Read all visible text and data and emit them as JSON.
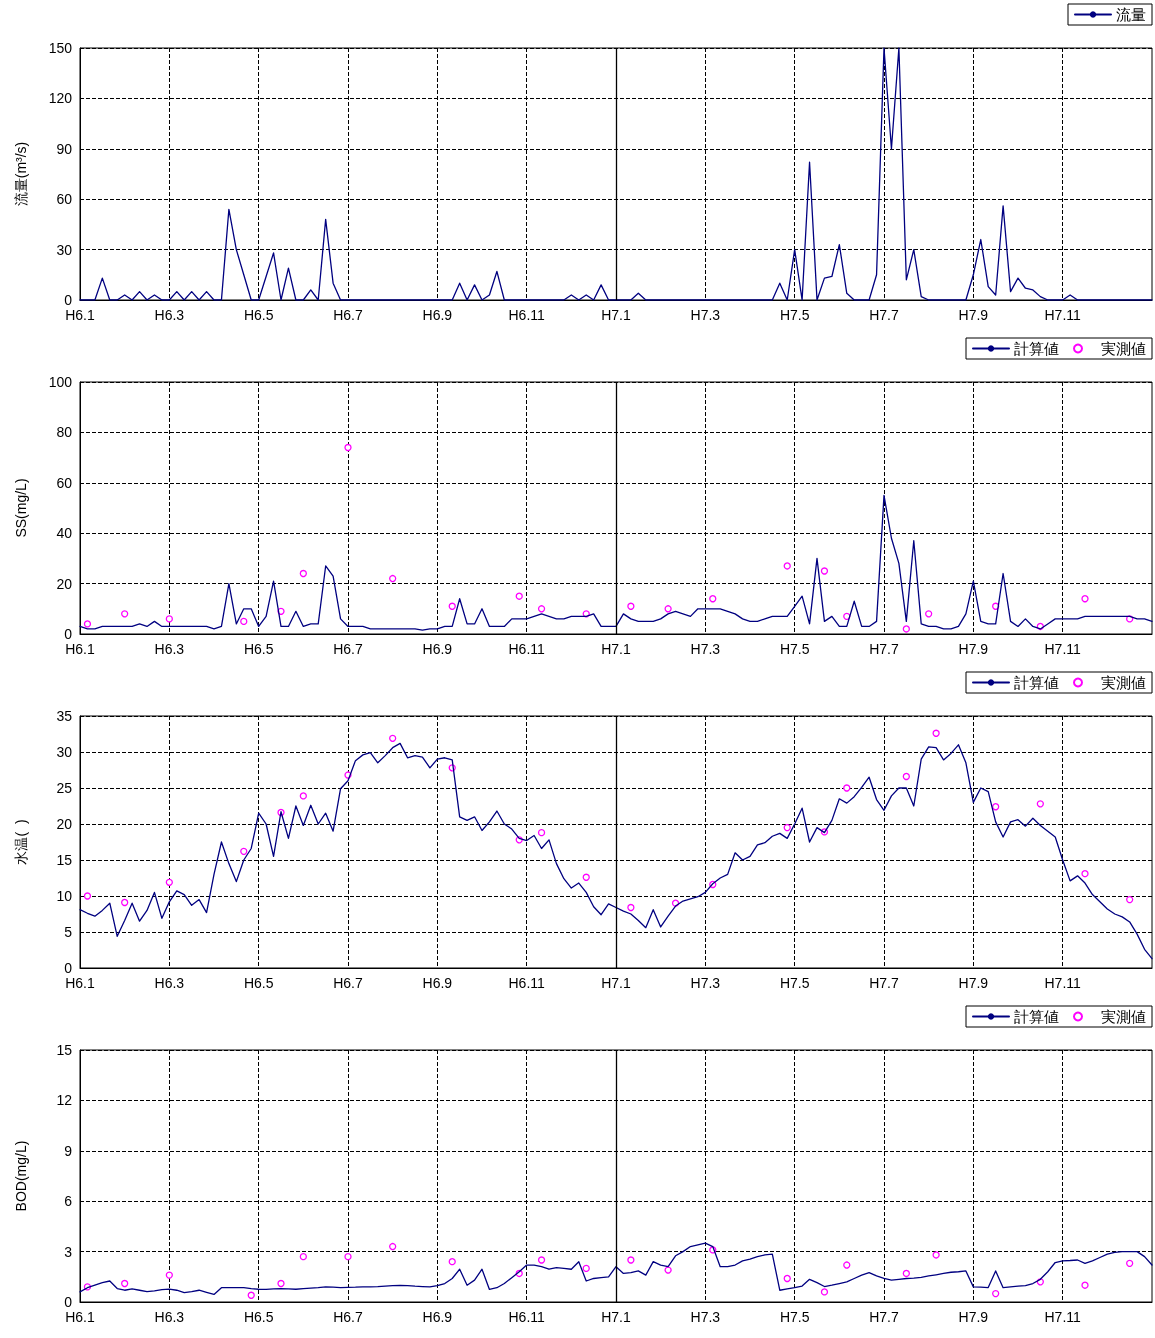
{
  "chart_data": [
    {
      "type": "line",
      "ylabel": "流量(m³/s)",
      "ylim": [
        0,
        150
      ],
      "yticks": [
        0,
        30,
        60,
        90,
        120,
        150
      ],
      "categories": [
        "H6.1",
        null,
        null,
        null,
        null,
        null,
        null,
        null,
        null,
        null,
        null,
        null,
        "H6.3",
        null,
        null,
        null,
        null,
        null,
        null,
        null,
        null,
        null,
        null,
        null,
        "H6.5",
        null,
        null,
        null,
        null,
        null,
        null,
        null,
        null,
        null,
        null,
        null,
        "H6.7",
        null,
        null,
        null,
        null,
        null,
        null,
        null,
        null,
        null,
        null,
        null,
        "H6.9",
        null,
        null,
        null,
        null,
        null,
        null,
        null,
        null,
        null,
        null,
        null,
        "H6.11",
        null,
        null,
        null,
        null,
        null,
        null,
        null,
        null,
        null,
        null,
        null,
        "H7.1",
        null,
        null,
        null,
        null,
        null,
        null,
        null,
        null,
        null,
        null,
        null,
        "H7.3",
        null,
        null,
        null,
        null,
        null,
        null,
        null,
        null,
        null,
        null,
        null,
        "H7.5",
        null,
        null,
        null,
        null,
        null,
        null,
        null,
        null,
        null,
        null,
        null,
        "H7.7",
        null,
        null,
        null,
        null,
        null,
        null,
        null,
        null,
        null,
        null,
        null,
        "H7.9",
        null,
        null,
        null,
        null,
        null,
        null,
        null,
        null,
        null,
        null,
        null,
        "H7.11",
        null,
        null,
        null,
        null,
        null,
        null,
        null,
        null,
        null,
        null,
        null,
        null
      ],
      "grid": true,
      "legend": "top right",
      "line_style": "solid",
      "ref_lines": [
        {
          "axis": "x",
          "value": "H7.1",
          "label": null,
          "color": "#000000",
          "line_style": "solid"
        }
      ],
      "series": [
        {
          "name": "流量",
          "color": "#000080",
          "marker": "none",
          "values": [
            0,
            0,
            0,
            13,
            0,
            0,
            3,
            0,
            5,
            0,
            3,
            0,
            0,
            5,
            0,
            5,
            0,
            5,
            0,
            0,
            54,
            30,
            15,
            0,
            0,
            14,
            28,
            0,
            19,
            0,
            0,
            6,
            0,
            48,
            10,
            0,
            0,
            0,
            0,
            0,
            0,
            0,
            0,
            0,
            0,
            0,
            0,
            0,
            0,
            0,
            0,
            10,
            0,
            9,
            0,
            3,
            17,
            0,
            0,
            0,
            0,
            0,
            0,
            0,
            0,
            0,
            3,
            0,
            3,
            0,
            9,
            0,
            0,
            0,
            0,
            4,
            0,
            0,
            0,
            0,
            0,
            0,
            0,
            0,
            0,
            0,
            0,
            0,
            0,
            0,
            0,
            0,
            0,
            0,
            10,
            0,
            30,
            0,
            82,
            0,
            13,
            14,
            33,
            4,
            0,
            0,
            0,
            15,
            150,
            90,
            150,
            12,
            30,
            2,
            0,
            0,
            0,
            0,
            0,
            0,
            15,
            36,
            8,
            3,
            56,
            5,
            13,
            7,
            6,
            2,
            0,
            0,
            0,
            3,
            0,
            0,
            0,
            0,
            0,
            0,
            0,
            0,
            0,
            0,
            0
          ]
        }
      ]
    },
    {
      "type": "line",
      "ylabel": "SS(mg/L)",
      "ylim": [
        0,
        100
      ],
      "yticks": [
        0,
        20,
        40,
        60,
        80,
        100
      ],
      "categories": [
        "H6.1",
        null,
        null,
        null,
        null,
        null,
        null,
        null,
        null,
        null,
        null,
        null,
        "H6.3",
        null,
        null,
        null,
        null,
        null,
        null,
        null,
        null,
        null,
        null,
        null,
        "H6.5",
        null,
        null,
        null,
        null,
        null,
        null,
        null,
        null,
        null,
        null,
        null,
        "H6.7",
        null,
        null,
        null,
        null,
        null,
        null,
        null,
        null,
        null,
        null,
        null,
        "H6.9",
        null,
        null,
        null,
        null,
        null,
        null,
        null,
        null,
        null,
        null,
        null,
        "H6.11",
        null,
        null,
        null,
        null,
        null,
        null,
        null,
        null,
        null,
        null,
        null,
        "H7.1",
        null,
        null,
        null,
        null,
        null,
        null,
        null,
        null,
        null,
        null,
        null,
        "H7.3",
        null,
        null,
        null,
        null,
        null,
        null,
        null,
        null,
        null,
        null,
        null,
        "H7.5",
        null,
        null,
        null,
        null,
        null,
        null,
        null,
        null,
        null,
        null,
        null,
        "H7.7",
        null,
        null,
        null,
        null,
        null,
        null,
        null,
        null,
        null,
        null,
        null,
        "H7.9",
        null,
        null,
        null,
        null,
        null,
        null,
        null,
        null,
        null,
        null,
        null,
        "H7.11",
        null,
        null,
        null,
        null,
        null,
        null,
        null,
        null,
        null,
        null,
        null,
        null
      ],
      "grid": true,
      "legend": "top right",
      "line_style": "solid",
      "ref_lines": [
        {
          "axis": "x",
          "value": "H7.1",
          "label": null,
          "color": "#000000",
          "line_style": "solid"
        }
      ],
      "series": [
        {
          "name": "計算値",
          "color": "#000080",
          "marker": "none",
          "values": [
            3,
            2,
            2,
            3,
            3,
            3,
            3,
            3,
            4,
            3,
            5,
            3,
            3,
            3,
            3,
            3,
            3,
            3,
            2,
            3,
            20,
            4,
            10,
            10,
            3,
            7,
            21,
            3,
            3,
            9,
            3,
            4,
            4,
            27,
            23,
            6,
            3,
            3,
            3,
            2,
            2,
            2,
            2,
            2,
            2,
            2,
            1.5,
            2,
            2,
            3,
            3,
            14,
            4,
            4,
            10,
            3,
            3,
            3,
            6,
            6,
            6,
            7,
            8,
            7,
            6,
            6,
            7,
            7,
            7,
            8,
            3,
            3,
            3,
            8,
            6,
            5,
            5,
            5,
            6,
            8,
            9,
            8,
            7,
            10,
            10,
            10,
            10,
            9,
            8,
            6,
            5,
            5,
            6,
            7,
            7,
            7,
            11,
            15,
            4,
            30,
            5,
            7,
            3,
            3,
            13,
            3,
            3,
            5,
            55,
            38,
            28,
            5,
            37,
            4,
            3,
            3,
            2,
            2,
            3,
            8,
            21,
            5,
            4,
            4,
            24,
            5,
            3,
            6,
            3,
            2,
            4,
            6,
            6,
            6,
            6,
            7,
            7,
            7,
            7,
            7,
            7,
            7,
            6,
            6,
            5
          ]
        },
        {
          "name": "実測値",
          "type": "scatter",
          "color": "#ff00ff",
          "marker": "circle",
          "values": [
            null,
            4,
            null,
            null,
            null,
            null,
            8,
            null,
            null,
            null,
            null,
            null,
            6,
            null,
            null,
            null,
            null,
            null,
            null,
            null,
            null,
            null,
            5,
            null,
            null,
            null,
            null,
            9,
            null,
            null,
            24,
            null,
            null,
            null,
            null,
            null,
            74,
            null,
            null,
            null,
            null,
            null,
            22,
            null,
            null,
            null,
            null,
            null,
            null,
            null,
            11,
            null,
            null,
            null,
            null,
            null,
            null,
            null,
            null,
            15,
            null,
            null,
            10,
            null,
            null,
            null,
            null,
            null,
            8,
            null,
            null,
            null,
            null,
            null,
            11,
            null,
            null,
            null,
            null,
            10,
            null,
            null,
            null,
            null,
            null,
            14,
            null,
            null,
            null,
            null,
            null,
            null,
            null,
            null,
            null,
            27,
            null,
            null,
            null,
            null,
            25,
            null,
            null,
            7,
            null,
            null,
            null,
            null,
            null,
            null,
            null,
            2,
            null,
            null,
            8,
            null,
            null,
            null,
            null,
            null,
            null,
            null,
            null,
            11,
            null,
            null,
            null,
            null,
            null,
            3,
            null,
            null,
            null,
            null,
            null,
            14,
            null,
            null,
            null,
            null,
            null,
            6,
            null,
            null,
            null
          ]
        }
      ]
    },
    {
      "type": "line",
      "ylabel": "水温(  )",
      "ylim": [
        0,
        35
      ],
      "yticks": [
        0,
        5,
        10,
        15,
        20,
        25,
        30,
        35
      ],
      "categories": [
        "H6.1",
        null,
        null,
        null,
        null,
        null,
        null,
        null,
        null,
        null,
        null,
        null,
        "H6.3",
        null,
        null,
        null,
        null,
        null,
        null,
        null,
        null,
        null,
        null,
        null,
        "H6.5",
        null,
        null,
        null,
        null,
        null,
        null,
        null,
        null,
        null,
        null,
        null,
        "H6.7",
        null,
        null,
        null,
        null,
        null,
        null,
        null,
        null,
        null,
        null,
        null,
        "H6.9",
        null,
        null,
        null,
        null,
        null,
        null,
        null,
        null,
        null,
        null,
        null,
        "H6.11",
        null,
        null,
        null,
        null,
        null,
        null,
        null,
        null,
        null,
        null,
        null,
        "H7.1",
        null,
        null,
        null,
        null,
        null,
        null,
        null,
        null,
        null,
        null,
        null,
        "H7.3",
        null,
        null,
        null,
        null,
        null,
        null,
        null,
        null,
        null,
        null,
        null,
        "H7.5",
        null,
        null,
        null,
        null,
        null,
        null,
        null,
        null,
        null,
        null,
        null,
        "H7.7",
        null,
        null,
        null,
        null,
        null,
        null,
        null,
        null,
        null,
        null,
        null,
        "H7.9",
        null,
        null,
        null,
        null,
        null,
        null,
        null,
        null,
        null,
        null,
        null,
        "H7.11",
        null,
        null,
        null,
        null,
        null,
        null,
        null,
        null,
        null,
        null,
        null,
        null
      ],
      "grid": true,
      "legend": "top right",
      "line_style": "solid",
      "ref_lines": [
        {
          "axis": "x",
          "value": "H7.1",
          "label": null,
          "color": "#000000",
          "line_style": "solid"
        }
      ],
      "series": [
        {
          "name": "計算値",
          "color": "#000080",
          "marker": "none",
          "values": [
            8.1,
            7.6,
            7.2,
            8.0,
            9,
            4.4,
            6.6,
            9,
            6.5,
            8,
            10.5,
            6.9,
            9.2,
            10.7,
            10.2,
            8.7,
            9.5,
            7.7,
            13,
            17.5,
            14.5,
            12,
            15,
            16.6,
            21.5,
            20,
            15.5,
            21.7,
            18,
            22.5,
            19.8,
            22.6,
            20,
            21.5,
            19,
            24.9,
            26,
            28.8,
            29.6,
            29.9,
            28.5,
            29.5,
            30.6,
            31.2,
            29.2,
            29.5,
            29.3,
            27.8,
            29,
            29.2,
            28.9,
            21,
            20.5,
            21,
            19.1,
            20.3,
            21.8,
            20,
            19.3,
            18,
            17.7,
            18.4,
            16.6,
            17.8,
            14.5,
            12.4,
            11.1,
            11.8,
            10.5,
            8.5,
            7.4,
            8.9,
            8.4,
            7.9,
            7.5,
            6.6,
            5.6,
            8.1,
            5.7,
            7.2,
            8.6,
            9.3,
            9.6,
            9.9,
            10.5,
            11.7,
            12.5,
            13,
            16,
            15,
            15.5,
            17.1,
            17.4,
            18.3,
            18.7,
            18,
            20,
            22.2,
            17.5,
            19.5,
            18.8,
            20.5,
            23.5,
            22.9,
            23.8,
            25.1,
            26.5,
            23.4,
            21.9,
            23.9,
            25,
            25,
            22.5,
            29,
            30.7,
            30.6,
            28.9,
            29.8,
            31,
            28.5,
            23,
            25,
            24.5,
            20.3,
            18.2,
            20.3,
            20.6,
            19.7,
            20.8,
            19.8,
            19,
            18.2,
            15,
            12.1,
            12.8,
            11.8,
            10.2,
            9.2,
            8.2,
            7.5,
            7.1,
            6.4,
            4.7,
            2.6,
            1.3
          ]
        },
        {
          "name": "実測値",
          "type": "scatter",
          "color": "#ff00ff",
          "marker": "circle",
          "values": [
            null,
            10,
            null,
            null,
            null,
            null,
            9.1,
            null,
            null,
            null,
            null,
            null,
            11.9,
            null,
            null,
            null,
            null,
            null,
            null,
            null,
            null,
            null,
            16.2,
            null,
            null,
            null,
            null,
            21.6,
            null,
            null,
            23.9,
            null,
            null,
            null,
            null,
            null,
            26.8,
            null,
            null,
            null,
            null,
            null,
            31.9,
            null,
            null,
            null,
            null,
            null,
            null,
            null,
            27.8,
            null,
            null,
            null,
            null,
            null,
            null,
            null,
            null,
            17.8,
            null,
            null,
            18.8,
            null,
            null,
            null,
            null,
            null,
            12.6,
            null,
            null,
            null,
            null,
            null,
            8.4,
            null,
            null,
            null,
            null,
            null,
            9.0,
            null,
            null,
            null,
            null,
            11.6,
            null,
            null,
            null,
            null,
            null,
            null,
            null,
            null,
            null,
            19.5,
            null,
            null,
            null,
            null,
            18.9,
            null,
            null,
            25,
            null,
            null,
            null,
            null,
            null,
            null,
            null,
            26.6,
            null,
            null,
            null,
            32.6,
            null,
            null,
            null,
            null,
            null,
            null,
            null,
            22.4,
            null,
            null,
            null,
            null,
            null,
            22.8,
            null,
            null,
            null,
            null,
            null,
            13.1,
            null,
            null,
            null,
            null,
            null,
            9.5,
            null,
            null,
            null
          ]
        }
      ]
    },
    {
      "type": "line",
      "ylabel": "BOD(mg/L)",
      "ylim": [
        0,
        15
      ],
      "yticks": [
        0,
        3,
        6,
        9,
        12,
        15
      ],
      "categories": [
        "H6.1",
        null,
        null,
        null,
        null,
        null,
        null,
        null,
        null,
        null,
        null,
        null,
        "H6.3",
        null,
        null,
        null,
        null,
        null,
        null,
        null,
        null,
        null,
        null,
        null,
        "H6.5",
        null,
        null,
        null,
        null,
        null,
        null,
        null,
        null,
        null,
        null,
        null,
        "H6.7",
        null,
        null,
        null,
        null,
        null,
        null,
        null,
        null,
        null,
        null,
        null,
        "H6.9",
        null,
        null,
        null,
        null,
        null,
        null,
        null,
        null,
        null,
        null,
        null,
        "H6.11",
        null,
        null,
        null,
        null,
        null,
        null,
        null,
        null,
        null,
        null,
        null,
        "H7.1",
        null,
        null,
        null,
        null,
        null,
        null,
        null,
        null,
        null,
        null,
        null,
        "H7.3",
        null,
        null,
        null,
        null,
        null,
        null,
        null,
        null,
        null,
        null,
        null,
        "H7.5",
        null,
        null,
        null,
        null,
        null,
        null,
        null,
        null,
        null,
        null,
        null,
        "H7.7",
        null,
        null,
        null,
        null,
        null,
        null,
        null,
        null,
        null,
        null,
        null,
        "H7.9",
        null,
        null,
        null,
        null,
        null,
        null,
        null,
        null,
        null,
        null,
        null,
        "H7.11",
        null,
        null,
        null,
        null,
        null,
        null,
        null,
        null,
        null,
        null,
        null,
        null
      ],
      "grid": true,
      "legend": "top right",
      "line_style": "solid",
      "ref_lines": [
        {
          "axis": "x",
          "value": "H7.1",
          "label": null,
          "color": "#000000",
          "line_style": "solid"
        }
      ],
      "series": [
        {
          "name": "計算値",
          "color": "#000080",
          "marker": "none",
          "values": [
            0.6,
            0.85,
            1.0,
            1.15,
            1.25,
            0.8,
            0.7,
            0.78,
            0.7,
            0.62,
            0.66,
            0.74,
            0.77,
            0.7,
            0.56,
            0.62,
            0.7,
            0.58,
            0.45,
            0.85,
            0.85,
            0.85,
            0.85,
            0.8,
            0.76,
            0.75,
            0.78,
            0.8,
            0.78,
            0.76,
            0.8,
            0.83,
            0.86,
            0.9,
            0.88,
            0.86,
            0.87,
            0.88,
            0.9,
            0.9,
            0.92,
            0.95,
            0.97,
            0.99,
            0.97,
            0.94,
            0.92,
            0.9,
            0.97,
            1.1,
            1.4,
            1.95,
            1.0,
            1.3,
            1.95,
            0.75,
            0.85,
            1.1,
            1.45,
            1.8,
            2.2,
            2.2,
            2.1,
            1.95,
            2.05,
            2.0,
            1.95,
            2.4,
            1.25,
            1.4,
            1.45,
            1.5,
            2.1,
            1.7,
            1.75,
            1.85,
            1.6,
            2.4,
            2.2,
            2.1,
            2.75,
            3.0,
            3.3,
            3.4,
            3.5,
            3.3,
            2.1,
            2.1,
            2.2,
            2.45,
            2.55,
            2.7,
            2.8,
            2.85,
            0.7,
            0.78,
            0.85,
            0.95,
            1.35,
            1.15,
            0.92,
            1.0,
            1.1,
            1.2,
            1.4,
            1.6,
            1.75,
            1.55,
            1.4,
            1.3,
            1.35,
            1.4,
            1.42,
            1.47,
            1.55,
            1.62,
            1.7,
            1.77,
            1.8,
            1.85,
            0.9,
            0.88,
            0.86,
            1.85,
            0.85,
            0.9,
            0.94,
            0.98,
            1.1,
            1.35,
            1.8,
            2.35,
            2.45,
            2.47,
            2.5,
            2.3,
            2.45,
            2.65,
            2.85,
            2.95,
            3.0,
            3.0,
            3.0,
            2.7,
            2.2
          ]
        },
        {
          "name": "実測値",
          "type": "scatter",
          "color": "#ff00ff",
          "marker": "circle",
          "values": [
            null,
            0.9,
            null,
            null,
            null,
            null,
            1.1,
            null,
            null,
            null,
            null,
            null,
            1.6,
            null,
            null,
            null,
            null,
            null,
            null,
            null,
            null,
            null,
            null,
            0.4,
            null,
            null,
            null,
            1.1,
            null,
            null,
            2.7,
            null,
            null,
            null,
            null,
            null,
            2.7,
            null,
            null,
            null,
            null,
            null,
            3.3,
            null,
            null,
            null,
            null,
            null,
            null,
            null,
            2.4,
            null,
            null,
            null,
            null,
            null,
            null,
            null,
            null,
            1.7,
            null,
            null,
            2.5,
            null,
            null,
            null,
            null,
            null,
            2.0,
            null,
            null,
            null,
            null,
            null,
            2.5,
            null,
            null,
            null,
            null,
            1.9,
            null,
            null,
            null,
            null,
            null,
            3.1,
            null,
            null,
            null,
            null,
            null,
            null,
            null,
            null,
            null,
            1.4,
            null,
            null,
            null,
            null,
            0.6,
            null,
            null,
            2.2,
            null,
            null,
            null,
            null,
            null,
            null,
            null,
            1.7,
            null,
            null,
            null,
            2.8,
            null,
            null,
            null,
            null,
            null,
            null,
            null,
            0.5,
            null,
            null,
            null,
            null,
            null,
            1.2,
            null,
            null,
            null,
            null,
            null,
            1.0,
            null,
            null,
            null,
            null,
            null,
            2.3,
            null,
            null,
            null
          ]
        }
      ]
    }
  ]
}
